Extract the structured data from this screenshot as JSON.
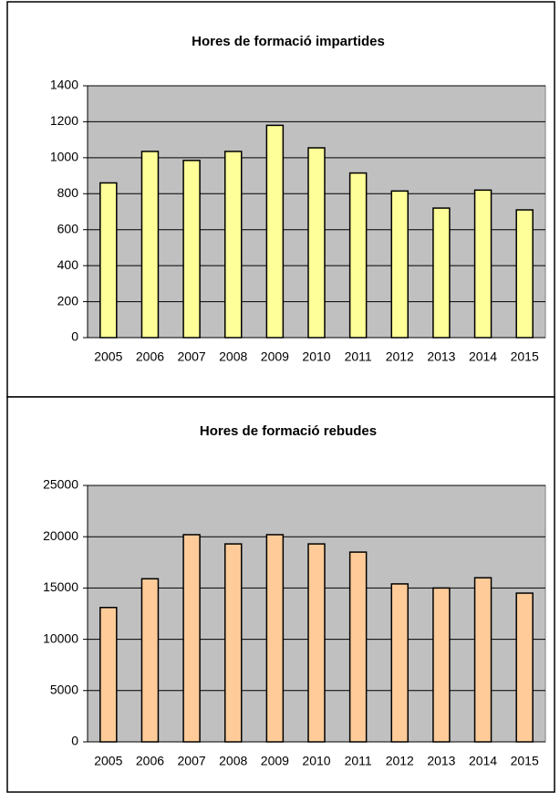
{
  "chart_data": [
    {
      "type": "bar",
      "title": "Hores de formació impartides",
      "categories": [
        "2005",
        "2006",
        "2007",
        "2008",
        "2009",
        "2010",
        "2011",
        "2012",
        "2013",
        "2014",
        "2015"
      ],
      "values": [
        860,
        1035,
        985,
        1035,
        1180,
        1055,
        915,
        815,
        720,
        820,
        710
      ],
      "color": "#ffff99",
      "ylim": [
        0,
        1400
      ],
      "yticks": [
        0,
        200,
        400,
        600,
        800,
        1000,
        1200,
        1400
      ],
      "grid": true
    },
    {
      "type": "bar",
      "title": "Hores de formació rebudes",
      "categories": [
        "2005",
        "2006",
        "2007",
        "2008",
        "2009",
        "2010",
        "2011",
        "2012",
        "2013",
        "2014",
        "2015"
      ],
      "values": [
        13100,
        15900,
        20200,
        19300,
        20200,
        19300,
        18500,
        15400,
        15000,
        16000,
        14500
      ],
      "color": "#ffcc99",
      "ylim": [
        0,
        25000
      ],
      "yticks": [
        0,
        5000,
        10000,
        15000,
        20000,
        25000
      ],
      "grid": true
    }
  ]
}
